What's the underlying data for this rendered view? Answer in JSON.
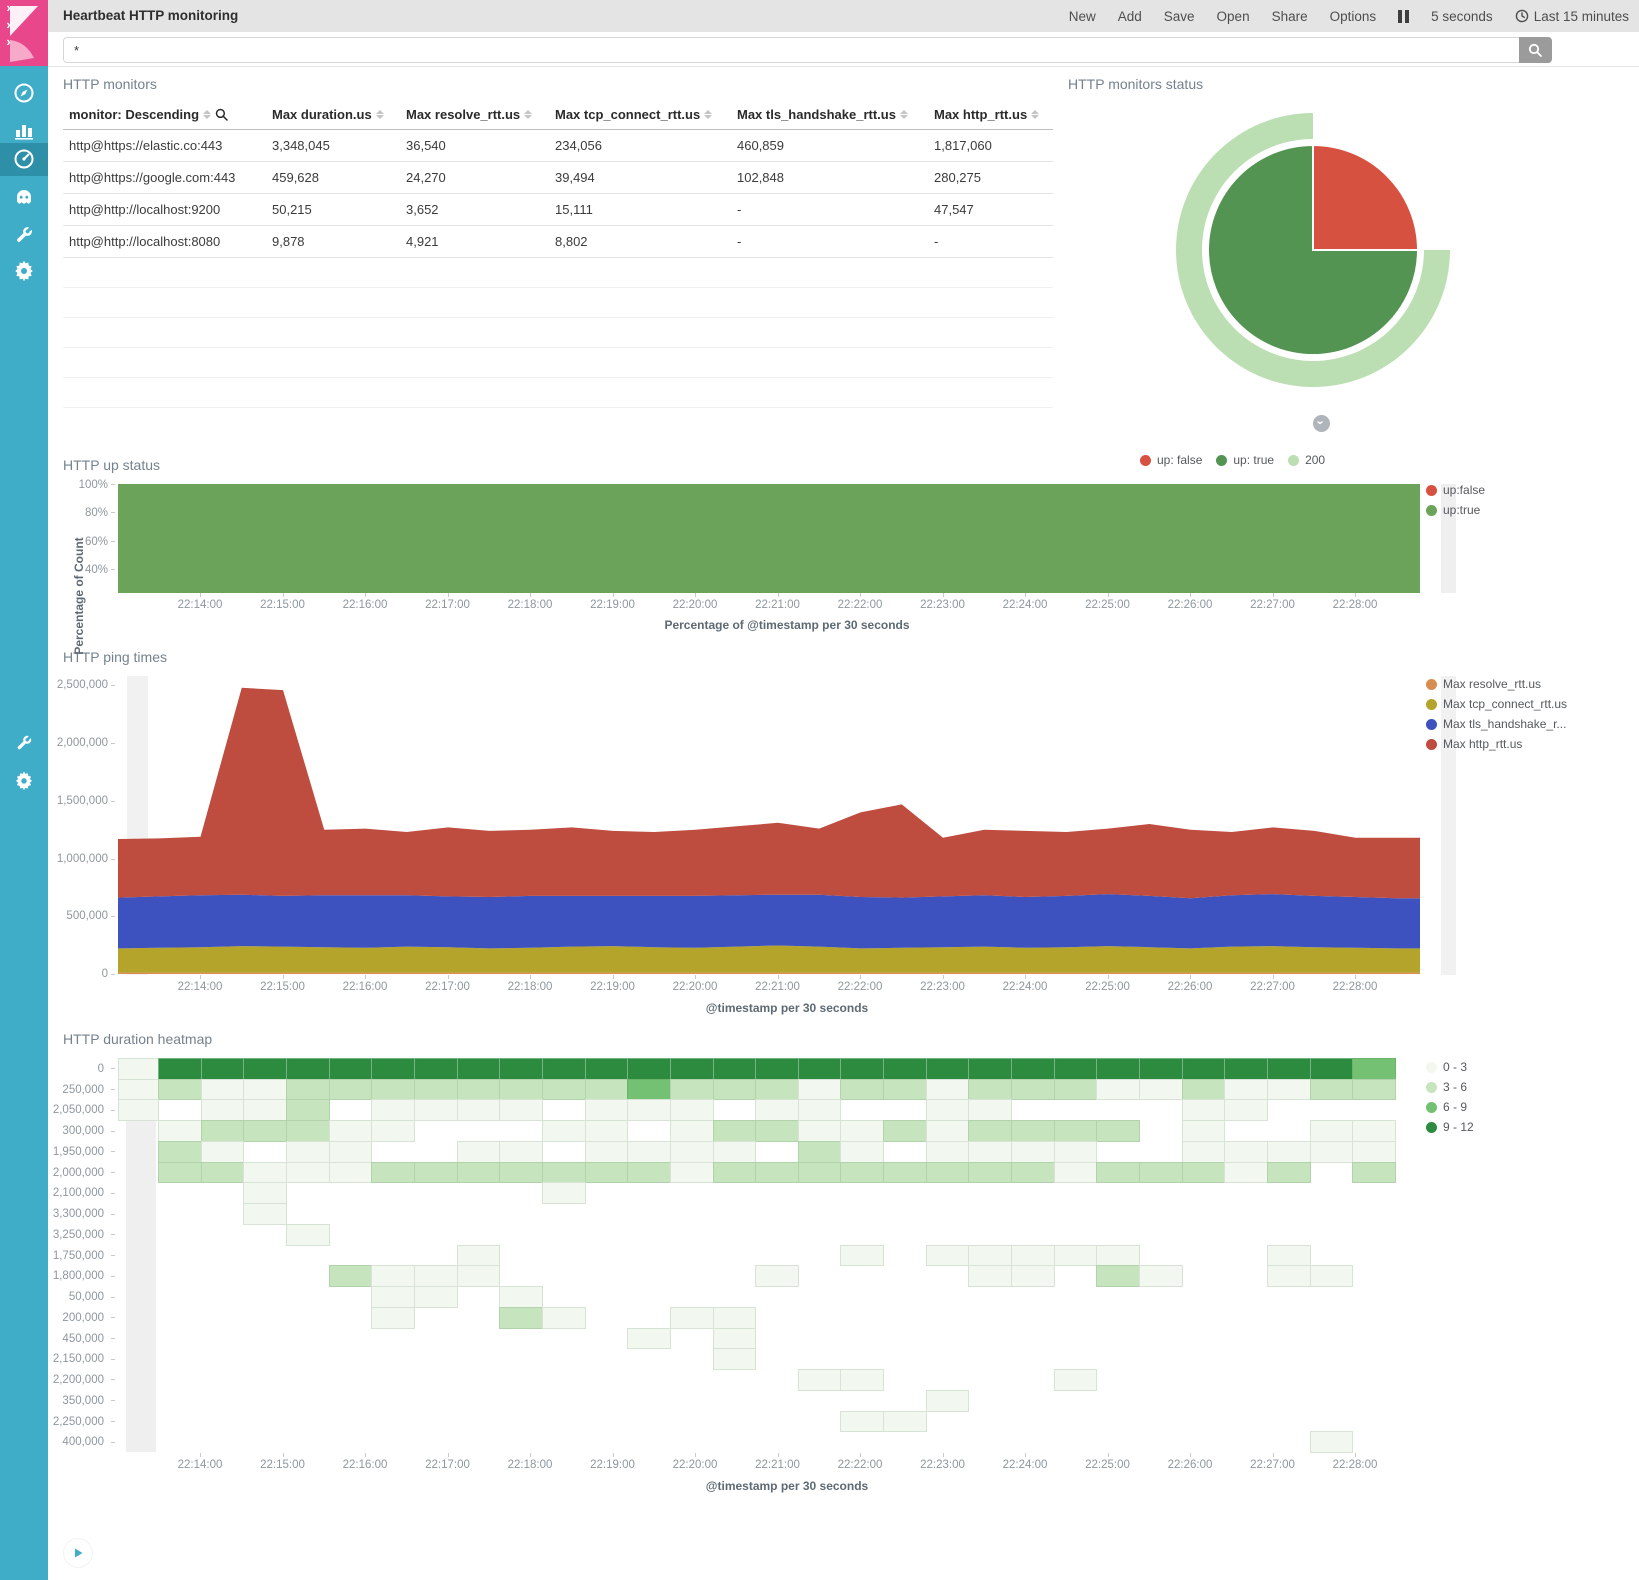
{
  "topbar": {
    "title": "Heartbeat HTTP monitoring",
    "menu": [
      "New",
      "Add",
      "Save",
      "Open",
      "Share",
      "Options"
    ],
    "refresh_interval": "5 seconds",
    "time_range": "Last 15 minutes"
  },
  "search": {
    "query": "*"
  },
  "sidebar": {
    "icons": [
      "compass",
      "bar-chart",
      "gauge-dashboard",
      "timelion",
      "wrench",
      "gear"
    ],
    "active_index": 2,
    "pinned_icons": [
      "wrench",
      "gear"
    ],
    "collapse_icon": "play"
  },
  "table_panel": {
    "title": "HTTP monitors",
    "columns": [
      "monitor: Descending",
      "Max duration.us",
      "Max resolve_rtt.us",
      "Max tcp_connect_rtt.us",
      "Max tls_handshake_rtt.us",
      "Max http_rtt.us"
    ],
    "rows": [
      [
        "http@https://elastic.co:443",
        "3,348,045",
        "36,540",
        "234,056",
        "460,859",
        "1,817,060"
      ],
      [
        "http@https://google.com:443",
        "459,628",
        "24,270",
        "39,494",
        "102,848",
        "280,275"
      ],
      [
        "http@http://localhost:9200",
        "50,215",
        "3,652",
        "15,111",
        "-",
        "47,547"
      ],
      [
        "http@http://localhost:8080",
        "9,878",
        "4,921",
        "8,802",
        "-",
        "-"
      ]
    ],
    "empty_row_count": 5
  },
  "chart_data": [
    {
      "id": "status_pie",
      "type": "pie",
      "title": "HTTP monitors status",
      "slices": [
        {
          "label": "up: false",
          "fraction": 0.25,
          "color": "#D75140"
        },
        {
          "label": "up: true",
          "fraction": 0.75,
          "color": "#549453"
        }
      ],
      "outer_ring": {
        "label": "200",
        "start_fraction": 0.25,
        "fraction": 0.75,
        "color": "#BBDFB2"
      },
      "legend": [
        {
          "label": "up: false",
          "color": "#D75140"
        },
        {
          "label": "up: true",
          "color": "#549453"
        },
        {
          "label": "200",
          "color": "#BBDFB2"
        }
      ]
    },
    {
      "id": "up_status",
      "type": "area",
      "title": "HTTP up status",
      "ylabel": "Percentage of Count",
      "xlabel": "Percentage of @timestamp per 30 seconds",
      "yticks": [
        "100%",
        "80%",
        "60%",
        "40%"
      ],
      "xticks": [
        "22:14:00",
        "22:15:00",
        "22:16:00",
        "22:17:00",
        "22:18:00",
        "22:19:00",
        "22:20:00",
        "22:21:00",
        "22:22:00",
        "22:23:00",
        "22:24:00",
        "22:25:00",
        "22:26:00",
        "22:27:00",
        "22:28:00"
      ],
      "series": [
        {
          "name": "up:true",
          "color": "#6BA35A",
          "constant_percent": 100
        }
      ],
      "legend": [
        {
          "label": "up:false",
          "color": "#D75140"
        },
        {
          "label": "up:true",
          "color": "#6BA35A"
        }
      ]
    },
    {
      "id": "ping_times",
      "type": "area_stacked",
      "title": "HTTP ping times",
      "xlabel": "@timestamp per 30 seconds",
      "yticks": [
        "2,500,000",
        "2,000,000",
        "1,500,000",
        "1,000,000",
        "500,000",
        "0"
      ],
      "ymax": 2582000,
      "x_start": "22:13:00",
      "x_interval_seconds": 30,
      "xticks": [
        "22:14:00",
        "22:15:00",
        "22:16:00",
        "22:17:00",
        "22:18:00",
        "22:19:00",
        "22:20:00",
        "22:21:00",
        "22:22:00",
        "22:23:00",
        "22:24:00",
        "22:25:00",
        "22:26:00",
        "22:27:00",
        "22:28:00"
      ],
      "series": [
        {
          "name": "Max resolve_rtt.us",
          "label": "Max resolve_rtt.us",
          "color": "#D98C4F",
          "values": [
            12000,
            12000,
            12000,
            12000,
            12000,
            12000,
            12000,
            12000,
            12000,
            12000,
            12000,
            12000,
            12000,
            12000,
            12000,
            12000,
            12000,
            12000,
            12000,
            12000,
            12000,
            12000,
            12000,
            12000,
            12000,
            12000,
            12000,
            12000,
            12000,
            12000,
            12000,
            12000
          ]
        },
        {
          "name": "Max tcp_connect_rtt.us",
          "label": "Max tcp_connect_rtt.us",
          "color": "#B5A42B",
          "values": [
            210000,
            215000,
            220000,
            230000,
            225000,
            220000,
            215000,
            225000,
            220000,
            210000,
            215000,
            225000,
            230000,
            220000,
            215000,
            225000,
            235000,
            225000,
            210000,
            215000,
            220000,
            225000,
            215000,
            220000,
            230000,
            220000,
            210000,
            225000,
            230000,
            220000,
            215000,
            210000
          ]
        },
        {
          "name": "Max tls_handshake_rtt.us",
          "label": "Max tls_handshake_r...",
          "color": "#3D52BE",
          "values": [
            440000,
            445000,
            450000,
            445000,
            440000,
            450000,
            455000,
            445000,
            440000,
            445000,
            450000,
            440000,
            435000,
            445000,
            450000,
            445000,
            440000,
            450000,
            445000,
            435000,
            440000,
            445000,
            440000,
            445000,
            450000,
            445000,
            435000,
            445000,
            450000,
            445000,
            440000,
            435000
          ]
        },
        {
          "name": "Max http_rtt.us",
          "label": "Max http_rtt.us",
          "color": "#BF4D3F",
          "values": [
            508000,
            503000,
            508000,
            1793000,
            1783000,
            568000,
            578000,
            548000,
            598000,
            573000,
            573000,
            593000,
            563000,
            553000,
            573000,
            598000,
            623000,
            573000,
            733000,
            808000,
            508000,
            568000,
            573000,
            553000,
            568000,
            623000,
            593000,
            548000,
            578000,
            563000,
            513000,
            523000
          ]
        }
      ]
    },
    {
      "id": "duration_heatmap",
      "type": "heatmap",
      "title": "HTTP duration heatmap",
      "xlabel": "@timestamp per 30 seconds",
      "xticks": [
        "22:14:00",
        "22:15:00",
        "22:16:00",
        "22:17:00",
        "22:18:00",
        "22:19:00",
        "22:20:00",
        "22:21:00",
        "22:22:00",
        "22:23:00",
        "22:24:00",
        "22:25:00",
        "22:26:00",
        "22:27:00",
        "22:28:00"
      ],
      "row_labels": [
        "0",
        "250,000",
        "2,050,000",
        "300,000",
        "1,950,000",
        "2,000,000",
        "2,100,000",
        "3,300,000",
        "3,250,000",
        "1,750,000",
        "1,800,000",
        "50,000",
        "200,000",
        "450,000",
        "2,150,000",
        "2,200,000",
        "350,000",
        "2,250,000",
        "400,000"
      ],
      "levels": [
        {
          "label": "0 - 3",
          "color": "#F2F8EF"
        },
        {
          "label": "3 - 6",
          "color": "#C6E4BE"
        },
        {
          "label": "6 - 9",
          "color": "#74C173"
        },
        {
          "label": "9 - 12",
          "color": "#2D8B3F"
        }
      ],
      "matrix": [
        [
          1,
          4,
          4,
          4,
          4,
          4,
          4,
          4,
          4,
          4,
          4,
          4,
          4,
          4,
          4,
          4,
          4,
          4,
          4,
          4,
          4,
          4,
          4,
          4,
          4,
          4,
          4,
          4,
          4,
          3
        ],
        [
          1,
          2,
          1,
          1,
          2,
          2,
          2,
          2,
          2,
          2,
          2,
          2,
          3,
          2,
          2,
          2,
          1,
          2,
          2,
          1,
          2,
          2,
          2,
          1,
          1,
          2,
          1,
          1,
          2,
          2
        ],
        [
          1,
          0,
          1,
          1,
          2,
          0,
          1,
          1,
          1,
          1,
          0,
          1,
          1,
          1,
          0,
          1,
          1,
          0,
          0,
          1,
          1,
          0,
          0,
          0,
          0,
          1,
          1,
          0,
          0,
          0
        ],
        [
          0,
          1,
          2,
          2,
          2,
          1,
          1,
          0,
          0,
          0,
          1,
          1,
          0,
          1,
          2,
          2,
          1,
          1,
          2,
          1,
          2,
          2,
          2,
          2,
          0,
          1,
          0,
          0,
          1,
          1
        ],
        [
          0,
          2,
          1,
          0,
          1,
          1,
          0,
          0,
          1,
          1,
          0,
          1,
          1,
          1,
          1,
          0,
          2,
          1,
          0,
          1,
          1,
          1,
          1,
          0,
          0,
          1,
          1,
          1,
          1,
          1
        ],
        [
          0,
          2,
          2,
          1,
          1,
          1,
          2,
          2,
          2,
          2,
          2,
          2,
          2,
          1,
          2,
          2,
          2,
          2,
          2,
          2,
          2,
          2,
          1,
          2,
          2,
          2,
          1,
          2,
          0,
          2
        ],
        [
          0,
          0,
          0,
          1,
          0,
          0,
          0,
          0,
          0,
          0,
          1,
          0,
          0,
          0,
          0,
          0,
          0,
          0,
          0,
          0,
          0,
          0,
          0,
          0,
          0,
          0,
          0,
          0,
          0,
          0
        ],
        [
          0,
          0,
          0,
          1,
          0,
          0,
          0,
          0,
          0,
          0,
          0,
          0,
          0,
          0,
          0,
          0,
          0,
          0,
          0,
          0,
          0,
          0,
          0,
          0,
          0,
          0,
          0,
          0,
          0,
          0
        ],
        [
          0,
          0,
          0,
          0,
          1,
          0,
          0,
          0,
          0,
          0,
          0,
          0,
          0,
          0,
          0,
          0,
          0,
          0,
          0,
          0,
          0,
          0,
          0,
          0,
          0,
          0,
          0,
          0,
          0,
          0
        ],
        [
          0,
          0,
          0,
          0,
          0,
          0,
          0,
          0,
          1,
          0,
          0,
          0,
          0,
          0,
          0,
          0,
          0,
          1,
          0,
          1,
          1,
          1,
          1,
          1,
          0,
          0,
          0,
          1,
          0,
          0
        ],
        [
          0,
          0,
          0,
          0,
          0,
          2,
          1,
          1,
          1,
          0,
          0,
          0,
          0,
          0,
          0,
          1,
          0,
          0,
          0,
          0,
          1,
          1,
          0,
          2,
          1,
          0,
          0,
          1,
          1,
          0
        ],
        [
          0,
          0,
          0,
          0,
          0,
          0,
          1,
          1,
          0,
          1,
          0,
          0,
          0,
          0,
          0,
          0,
          0,
          0,
          0,
          0,
          0,
          0,
          0,
          0,
          0,
          0,
          0,
          0,
          0,
          0
        ],
        [
          0,
          0,
          0,
          0,
          0,
          0,
          1,
          0,
          0,
          2,
          1,
          0,
          0,
          1,
          1,
          0,
          0,
          0,
          0,
          0,
          0,
          0,
          0,
          0,
          0,
          0,
          0,
          0,
          0,
          0
        ],
        [
          0,
          0,
          0,
          0,
          0,
          0,
          0,
          0,
          0,
          0,
          0,
          0,
          1,
          0,
          1,
          0,
          0,
          0,
          0,
          0,
          0,
          0,
          0,
          0,
          0,
          0,
          0,
          0,
          0,
          0
        ],
        [
          0,
          0,
          0,
          0,
          0,
          0,
          0,
          0,
          0,
          0,
          0,
          0,
          0,
          0,
          1,
          0,
          0,
          0,
          0,
          0,
          0,
          0,
          0,
          0,
          0,
          0,
          0,
          0,
          0,
          0
        ],
        [
          0,
          0,
          0,
          0,
          0,
          0,
          0,
          0,
          0,
          0,
          0,
          0,
          0,
          0,
          0,
          0,
          1,
          1,
          0,
          0,
          0,
          0,
          1,
          0,
          0,
          0,
          0,
          0,
          0,
          0
        ],
        [
          0,
          0,
          0,
          0,
          0,
          0,
          0,
          0,
          0,
          0,
          0,
          0,
          0,
          0,
          0,
          0,
          0,
          0,
          0,
          1,
          0,
          0,
          0,
          0,
          0,
          0,
          0,
          0,
          0,
          0
        ],
        [
          0,
          0,
          0,
          0,
          0,
          0,
          0,
          0,
          0,
          0,
          0,
          0,
          0,
          0,
          0,
          0,
          0,
          1,
          1,
          0,
          0,
          0,
          0,
          0,
          0,
          0,
          0,
          0,
          0,
          0
        ],
        [
          0,
          0,
          0,
          0,
          0,
          0,
          0,
          0,
          0,
          0,
          0,
          0,
          0,
          0,
          0,
          0,
          0,
          0,
          0,
          0,
          0,
          0,
          0,
          0,
          0,
          0,
          0,
          0,
          1,
          0
        ]
      ]
    }
  ]
}
